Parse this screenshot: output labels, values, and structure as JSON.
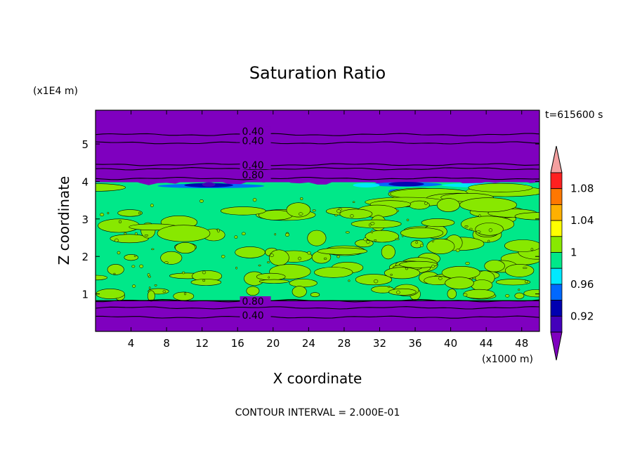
{
  "chart_data": {
    "type": "heatmap",
    "title": "Saturation Ratio",
    "time_label": "t=615600 s",
    "xlabel": "X coordinate",
    "ylabel": "Z coordinate",
    "x_unit_label": "(x1000 m)",
    "y_unit_label": "(x1E4 m)",
    "footer": "CONTOUR INTERVAL = 2.000E-01",
    "xlim": [
      0,
      50
    ],
    "ylim": [
      0,
      5.9
    ],
    "x_ticks": [
      "4",
      "8",
      "12",
      "16",
      "20",
      "24",
      "28",
      "32",
      "36",
      "40",
      "44",
      "48"
    ],
    "y_ticks": [
      "1",
      "2",
      "3",
      "4",
      "5"
    ],
    "colorbar": {
      "min": 0.9,
      "max": 1.1,
      "labels": [
        "1.08",
        "1.04",
        "1",
        "0.96",
        "0.92"
      ],
      "levels": [
        0.9,
        0.92,
        0.94,
        0.96,
        0.98,
        1.0,
        1.02,
        1.04,
        1.06,
        1.08,
        1.1
      ],
      "colors": [
        "#7f00bf",
        "#4400bb",
        "#0000b0",
        "#0068ff",
        "#00e8ff",
        "#00e889",
        "#88e800",
        "#ffff00",
        "#ffb000",
        "#ff7700",
        "#ff2020",
        "#f4a0a0"
      ]
    },
    "contour_labels": [
      {
        "text": "0.40",
        "x": 16.5,
        "y": 5.28
      },
      {
        "text": "0.40",
        "x": 16.5,
        "y": 5.03
      },
      {
        "text": "0.40",
        "x": 16.5,
        "y": 4.38
      },
      {
        "text": "0.80",
        "x": 16.5,
        "y": 4.12
      },
      {
        "text": "0.80",
        "x": 16.5,
        "y": 0.75
      },
      {
        "text": "0.40",
        "x": 16.5,
        "y": 0.37
      }
    ],
    "contour_lines_y": [
      5.25,
      5.03,
      4.45,
      4.34,
      4.08,
      0.82,
      0.63,
      0.38
    ],
    "cloud_layer": {
      "bottom": 0.82,
      "top": 3.98,
      "value_range": [
        0.98,
        1.02
      ]
    }
  }
}
